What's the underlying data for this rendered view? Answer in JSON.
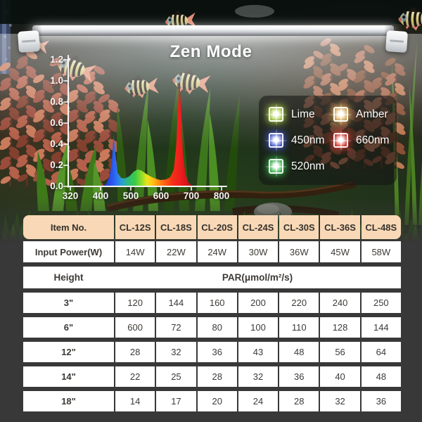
{
  "title": "Zen Mode",
  "colors": {
    "background": "#383838",
    "table_header_bg": "#f8d8b6",
    "lime": "#b9e24d",
    "amber": "#f3c468",
    "blue_450": "#4a63e6",
    "red_660": "#ea3c34",
    "green_520": "#3ecb55"
  },
  "chart_data": {
    "type": "area",
    "title": "Zen Mode",
    "xlabel": "",
    "ylabel": "",
    "xtick_labels": [
      "320",
      "400",
      "500",
      "600",
      "700",
      "800"
    ],
    "ytick_labels": [
      "1.2",
      "1.0",
      "0.8",
      "0.6",
      "0.4",
      "0.2",
      "0.0"
    ],
    "ylim": [
      0,
      1.2
    ],
    "x_unit": "nm",
    "grid": false,
    "legend_position": "overlay-right",
    "series": [
      {
        "name": "Zen Mode spectrum",
        "points": [
          [
            408,
            0.0
          ],
          [
            420,
            0.03
          ],
          [
            430,
            0.1
          ],
          [
            437,
            0.22
          ],
          [
            443,
            0.49
          ],
          [
            449,
            0.3
          ],
          [
            456,
            0.13
          ],
          [
            468,
            0.08
          ],
          [
            480,
            0.075
          ],
          [
            495,
            0.095
          ],
          [
            510,
            0.14
          ],
          [
            522,
            0.16
          ],
          [
            535,
            0.15
          ],
          [
            550,
            0.12
          ],
          [
            565,
            0.095
          ],
          [
            580,
            0.075
          ],
          [
            598,
            0.06
          ],
          [
            615,
            0.065
          ],
          [
            630,
            0.085
          ],
          [
            642,
            0.16
          ],
          [
            650,
            0.38
          ],
          [
            656,
            0.75
          ],
          [
            661,
            1.01
          ],
          [
            666,
            0.72
          ],
          [
            672,
            0.32
          ],
          [
            680,
            0.12
          ],
          [
            690,
            0.04
          ],
          [
            700,
            0.012
          ],
          [
            710,
            0.0
          ]
        ]
      }
    ],
    "peaks": [
      {
        "label": "450nm",
        "rel_intensity": 0.49
      },
      {
        "label": "520nm",
        "rel_intensity": 0.16
      },
      {
        "label": "660nm",
        "rel_intensity": 1.01
      }
    ]
  },
  "legend": {
    "items": [
      {
        "label": "Lime",
        "color": "#b9e24d"
      },
      {
        "label": "Amber",
        "color": "#f3c468"
      },
      {
        "label": "450nm",
        "color": "#4a63e6"
      },
      {
        "label": "660nm",
        "color": "#ea3c34"
      },
      {
        "label": "520nm",
        "color": "#3ecb55"
      }
    ]
  },
  "table": {
    "header": [
      "Item No.",
      "CL-12S",
      "CL-18S",
      "CL-20S",
      "CL-24S",
      "CL-30S",
      "CL-36S",
      "CL-48S"
    ],
    "power_row": [
      "Input Power(W)",
      "14W",
      "22W",
      "24W",
      "30W",
      "36W",
      "45W",
      "58W"
    ],
    "height_label": "Height",
    "par_label": "PAR(μmol/m²/s)",
    "par_rows": [
      {
        "height": "3\"",
        "values": [
          "120",
          "144",
          "160",
          "200",
          "220",
          "240",
          "250"
        ]
      },
      {
        "height": "6\"",
        "values": [
          "600",
          "72",
          "80",
          "100",
          "110",
          "128",
          "144"
        ]
      },
      {
        "height": "12\"",
        "values": [
          "28",
          "32",
          "36",
          "43",
          "48",
          "56",
          "64"
        ]
      },
      {
        "height": "14\"",
        "values": [
          "22",
          "25",
          "28",
          "32",
          "36",
          "40",
          "48"
        ]
      },
      {
        "height": "18\"",
        "values": [
          "14",
          "17",
          "20",
          "24",
          "28",
          "32",
          "36"
        ]
      }
    ]
  }
}
